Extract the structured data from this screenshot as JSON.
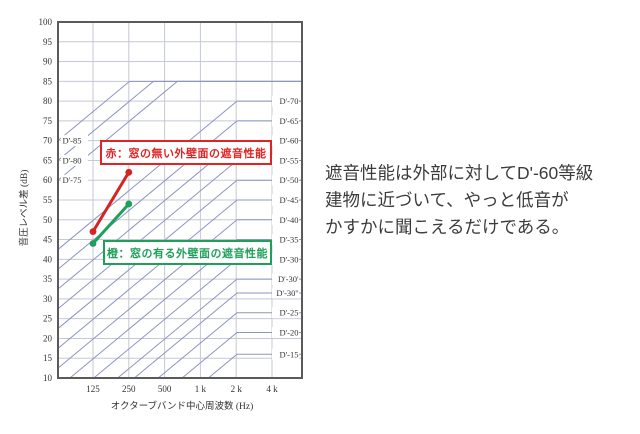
{
  "caption": {
    "line1": "遮音性能は外部に対してD'-60等級",
    "line2": "建物に近づいて、やっと低音が",
    "line3": "かすかに聞こえるだけである。"
  },
  "chart_data": {
    "type": "line",
    "title": "",
    "xlabel": "オクターブバンド中心周波数 (Hz)",
    "ylabel": "音圧レベル差 (dB)",
    "ylim": [
      10,
      100
    ],
    "ytick_step": 5,
    "x_ticks": [
      "125",
      "250",
      "500",
      "1 k",
      "2 k",
      "4 k"
    ],
    "grid": true,
    "legend_position": "on-chart-boxes",
    "series": [
      {
        "name": "赤：窓の無い外壁面の遮音性能",
        "color": "#d42424",
        "x": [
          125,
          250
        ],
        "values": [
          47,
          62
        ]
      },
      {
        "name": "橙：窓の有る外壁面の遮音性能",
        "color": "#1fa05a",
        "x": [
          125,
          250
        ],
        "values": [
          44,
          54
        ]
      }
    ],
    "reference_curves": [
      {
        "label": "D'-85",
        "label_side": "left",
        "label_db": 70,
        "start_db": 70,
        "plateau_db": 85
      },
      {
        "label": "D'-80",
        "label_side": "left",
        "label_db": 65,
        "start_db": 65,
        "plateau_db": 85
      },
      {
        "label": "D'-75",
        "label_side": "left",
        "label_db": 60,
        "start_db": 60,
        "plateau_db": 85
      },
      {
        "label": "D'-70",
        "label_side": "right",
        "label_db": 80,
        "start_db": 42.5,
        "plateau_db": 80
      },
      {
        "label": "D'-65",
        "label_side": "right",
        "label_db": 75,
        "start_db": 37.5,
        "plateau_db": 75
      },
      {
        "label": "D'-60",
        "label_side": "right",
        "label_db": 70,
        "start_db": 32.5,
        "plateau_db": 70
      },
      {
        "label": "D'-55",
        "label_side": "right",
        "label_db": 65,
        "start_db": 27.5,
        "plateau_db": 65
      },
      {
        "label": "D'-50",
        "label_side": "right",
        "label_db": 60,
        "start_db": 22.5,
        "plateau_db": 60
      },
      {
        "label": "D'-45",
        "label_side": "right",
        "label_db": 55,
        "start_db": 17.5,
        "plateau_db": 55
      },
      {
        "label": "D'-40",
        "label_side": "right",
        "label_db": 50,
        "start_db": 12.5,
        "plateau_db": 50
      },
      {
        "label": "D'-35",
        "label_side": "right",
        "label_db": 45,
        "start_db": 7.5,
        "plateau_db": 45
      },
      {
        "label": "D'-30",
        "label_side": "right",
        "label_db": 40,
        "start_db": 2.5,
        "plateau_db": 40
      },
      {
        "label": "D'-30'",
        "label_side": "right",
        "label_db": 35,
        "start_db": -2.5,
        "plateau_db": 35
      },
      {
        "label": "D'-30''",
        "label_side": "right",
        "label_db": 31.5,
        "start_db": -6,
        "plateau_db": 31.5
      },
      {
        "label": "D'-25",
        "label_side": "right",
        "label_db": 26.5,
        "start_db": -11,
        "plateau_db": 26.5
      },
      {
        "label": "D'-20",
        "label_side": "right",
        "label_db": 21.5,
        "start_db": -16,
        "plateau_db": 21.5
      },
      {
        "label": "D'-15",
        "label_side": "right",
        "label_db": 16,
        "start_db": -21.5,
        "plateau_db": 16
      }
    ],
    "colors": {
      "grid": "#c5c8d6",
      "reference_curve": "#8d94c2",
      "border": "#5a5a5a",
      "text": "#333333"
    }
  }
}
